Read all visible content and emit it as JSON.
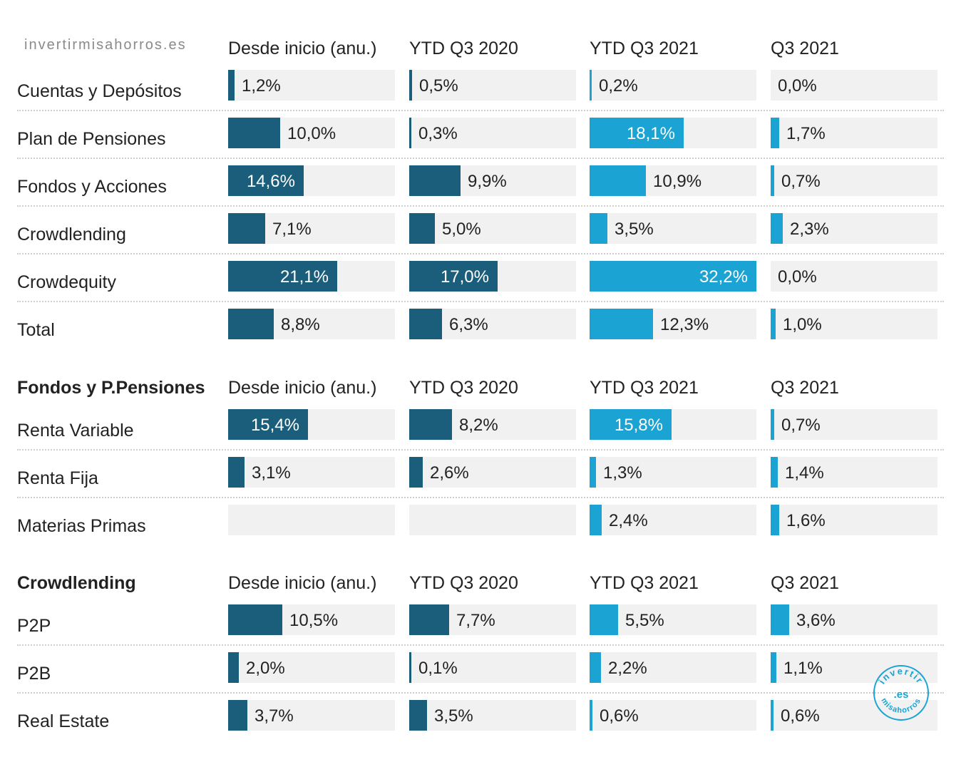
{
  "watermark": "invertirmisahorros.es",
  "stamp": {
    "top_text": "invertir",
    "center_text": ".es",
    "bottom_text": "misahorros"
  },
  "colors": {
    "dark_bar": "#1b5e7c",
    "light_bar": "#1aa3d3",
    "cell_bg": "#f1f1f1",
    "stamp": "#1aa3d3"
  },
  "chart_data": [
    {
      "type": "bar",
      "title": "",
      "columns": [
        "Desde inicio (anu.)",
        "YTD Q3 2020",
        "YTD Q3 2021",
        "Q3 2021"
      ],
      "rows": [
        {
          "label": "Cuentas y Depósitos",
          "values": [
            1.2,
            0.5,
            0.2,
            0.0
          ],
          "labels": [
            "1,2%",
            "0,5%",
            "0,2%",
            "0,0%"
          ]
        },
        {
          "label": "Plan de Pensiones",
          "values": [
            10.0,
            0.3,
            18.1,
            1.7
          ],
          "labels": [
            "10,0%",
            "0,3%",
            "18,1%",
            "1,7%"
          ]
        },
        {
          "label": "Fondos y Acciones",
          "values": [
            14.6,
            9.9,
            10.9,
            0.7
          ],
          "labels": [
            "14,6%",
            "9,9%",
            "10,9%",
            "0,7%"
          ]
        },
        {
          "label": "Crowdlending",
          "values": [
            7.1,
            5.0,
            3.5,
            2.3
          ],
          "labels": [
            "7,1%",
            "5,0%",
            "3,5%",
            "2,3%"
          ]
        },
        {
          "label": "Crowdequity",
          "values": [
            21.1,
            17.0,
            32.2,
            0.0
          ],
          "labels": [
            "21,1%",
            "17,0%",
            "32,2%",
            "0,0%"
          ]
        },
        {
          "label": "Total",
          "values": [
            8.8,
            6.3,
            12.3,
            1.0
          ],
          "labels": [
            "8,8%",
            "6,3%",
            "12,3%",
            "1,0%"
          ]
        }
      ]
    },
    {
      "type": "bar",
      "title": "Fondos y P.Pensiones",
      "columns": [
        "Desde inicio (anu.)",
        "YTD Q3 2020",
        "YTD Q3 2021",
        "Q3 2021"
      ],
      "rows": [
        {
          "label": "Renta Variable",
          "values": [
            15.4,
            8.2,
            15.8,
            0.7
          ],
          "labels": [
            "15,4%",
            "8,2%",
            "15,8%",
            "0,7%"
          ]
        },
        {
          "label": "Renta Fija",
          "values": [
            3.1,
            2.6,
            1.3,
            1.4
          ],
          "labels": [
            "3,1%",
            "2,6%",
            "1,3%",
            "1,4%"
          ]
        },
        {
          "label": "Materias Primas",
          "values": [
            null,
            null,
            2.4,
            1.6
          ],
          "labels": [
            "",
            "",
            "2,4%",
            "1,6%"
          ]
        }
      ]
    },
    {
      "type": "bar",
      "title": "Crowdlending",
      "columns": [
        "Desde inicio (anu.)",
        "YTD Q3 2020",
        "YTD Q3 2021",
        "Q3 2021"
      ],
      "rows": [
        {
          "label": "P2P",
          "values": [
            10.5,
            7.7,
            5.5,
            3.6
          ],
          "labels": [
            "10,5%",
            "7,7%",
            "5,5%",
            "3,6%"
          ]
        },
        {
          "label": "P2B",
          "values": [
            2.0,
            0.1,
            2.2,
            1.1
          ],
          "labels": [
            "2,0%",
            "0,1%",
            "2,2%",
            "1,1%"
          ]
        },
        {
          "label": "Real Estate",
          "values": [
            3.7,
            3.5,
            0.6,
            0.6
          ],
          "labels": [
            "3,7%",
            "3,5%",
            "0,6%",
            "0,6%"
          ]
        }
      ]
    }
  ]
}
